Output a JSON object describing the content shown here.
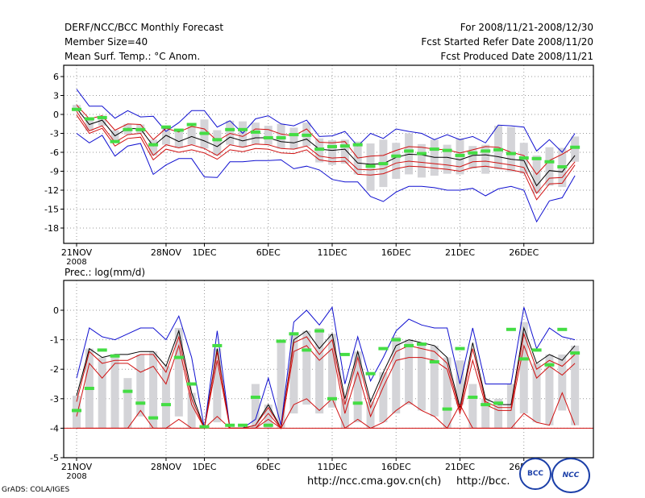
{
  "header": {
    "title": "DERF/NCC/BCC Monthly Forecast",
    "member_size": "Member Size=40",
    "variable": "Mean Surf. Temp.: °C Anom.",
    "period": "For 2008/11/21-2008/12/30",
    "started": "Fcst Started Refer Date 2008/11/20",
    "produced": "Fcst Produced Date 2008/11/21"
  },
  "footer": {
    "credit": "GrADS: COLA/IGES",
    "url1": "http://ncc.cma.gov.cn(ch)",
    "url2": "http://bcc.",
    "logo_bcc": "BCC",
    "logo_ncc": "NCC"
  },
  "x_ticks": [
    {
      "day": 0,
      "label": "21NOV",
      "sub": "2008"
    },
    {
      "day": 7,
      "label": "28NOV"
    },
    {
      "day": 10,
      "label": "1DEC"
    },
    {
      "day": 15,
      "label": "6DEC"
    },
    {
      "day": 20,
      "label": "11DEC"
    },
    {
      "day": 25,
      "label": "16DEC"
    },
    {
      "day": 30,
      "label": "21DEC"
    },
    {
      "day": 35,
      "label": "26DEC"
    }
  ],
  "colors": {
    "bar": "#d4d4d8",
    "max_min": "#1010d0",
    "pct": "#d01010",
    "mean": "#000000",
    "obs": "#44dd44"
  },
  "chart_data": [
    {
      "type": "line",
      "title": "Mean Surf. Temp.: °C Anom.",
      "ylabel": "Mean Surf. Temp. (°C Anom.)",
      "ylim": [
        -20,
        8
      ],
      "yticks": [
        6,
        3,
        0,
        -3,
        -6,
        -9,
        -12,
        -15,
        -18
      ],
      "x_days": 40,
      "series": [
        {
          "name": "max",
          "values": [
            4,
            1.3,
            1.3,
            -0.6,
            0.6,
            -0.4,
            -0.3,
            -2.7,
            -1.3,
            0.6,
            0.6,
            -2,
            -1,
            -3,
            -0.7,
            -0.2,
            -1.5,
            -1.8,
            -0.9,
            -3.5,
            -3.4,
            -2.7,
            -5,
            -3,
            -3.8,
            -2.3,
            -2.7,
            -3,
            -4,
            -3.2,
            -4,
            -3.5,
            -4.5,
            -1.7,
            -1.8,
            -2,
            -5.8,
            -4,
            -6,
            -3
          ]
        },
        {
          "name": "p75",
          "values": [
            1.5,
            -0.7,
            -0.2,
            -2.5,
            -1.5,
            -1.6,
            -4,
            -2.2,
            -2.8,
            -1.9,
            -2.3,
            -4.2,
            -3,
            -3.5,
            -2.3,
            -2.4,
            -3.1,
            -3.4,
            -2.3,
            -4.4,
            -4.5,
            -4.3,
            -6.9,
            -6.6,
            -6.5,
            -5.7,
            -5.1,
            -5.2,
            -5.5,
            -5.6,
            -6.1,
            -5.6,
            -5.1,
            -5.2,
            -6,
            -6.5,
            -9.5,
            -7.3,
            -6.3,
            -5.1
          ]
        },
        {
          "name": "mean",
          "values": [
            1,
            -1.6,
            -0.9,
            -3.4,
            -2.2,
            -2.3,
            -5,
            -3.3,
            -4.3,
            -3.5,
            -4.2,
            -5.1,
            -3.6,
            -4.2,
            -3.7,
            -3.7,
            -4.3,
            -4.5,
            -3.9,
            -5.5,
            -5.7,
            -5.5,
            -7.7,
            -7.9,
            -7.8,
            -6.8,
            -6.3,
            -6.4,
            -6.8,
            -6.8,
            -7.2,
            -6.5,
            -6.4,
            -6.7,
            -7.1,
            -7.3,
            -11.3,
            -8.9,
            -9.1,
            -6.5
          ]
        },
        {
          "name": "p25",
          "values": [
            0.5,
            -2.6,
            -1.8,
            -4.4,
            -3.2,
            -3,
            -6.5,
            -4.8,
            -5.3,
            -4.8,
            -5.4,
            -6.5,
            -4.8,
            -5.2,
            -4.7,
            -4.8,
            -5.4,
            -5.5,
            -5,
            -6.6,
            -6.9,
            -6.8,
            -8.7,
            -8.8,
            -8.6,
            -7.7,
            -7.4,
            -7.6,
            -7.8,
            -8,
            -8.3,
            -7.5,
            -7.4,
            -7.7,
            -8,
            -8.4,
            -12.5,
            -10.1,
            -10,
            -7.5
          ]
        },
        {
          "name": "p10",
          "values": [
            -0.1,
            -3,
            -2.2,
            -5,
            -3.8,
            -3.6,
            -7.2,
            -5.5,
            -6,
            -5.6,
            -6.1,
            -7.1,
            -5.6,
            -5.9,
            -5.4,
            -5.5,
            -6.1,
            -6.2,
            -5.6,
            -7.2,
            -7.5,
            -7.4,
            -9.5,
            -9.6,
            -9.4,
            -8.6,
            -8.2,
            -8.3,
            -8.5,
            -8.7,
            -9,
            -8.4,
            -8.2,
            -8.5,
            -8.8,
            -9.2,
            -13.5,
            -11,
            -10.9,
            -8
          ]
        },
        {
          "name": "min",
          "values": [
            -3,
            -4.5,
            -3.3,
            -6.6,
            -5,
            -4.6,
            -9.5,
            -8,
            -7,
            -7,
            -9.9,
            -10,
            -7.5,
            -7.5,
            -7.3,
            -7.3,
            -7.2,
            -8.6,
            -8.2,
            -8.8,
            -10.3,
            -10.7,
            -10.7,
            -13,
            -13.8,
            -12.3,
            -11.4,
            -11.4,
            -11.6,
            -12,
            -12,
            -11.7,
            -12.9,
            -11.8,
            -11.4,
            -12,
            -17,
            -13.7,
            -13.2,
            -9.7
          ]
        },
        {
          "name": "observed",
          "values": [
            0.8,
            -0.7,
            -0.5,
            -4.3,
            -2.4,
            -2.4,
            -4.8,
            -2,
            -2.5,
            -1.6,
            -3,
            -4,
            -2.4,
            -2.4,
            -2.8,
            -3.7,
            -3.7,
            -3.2,
            -3.3,
            -5.5,
            -5.1,
            -5,
            -4.8,
            -8.2,
            -7.8,
            -6.6,
            -5.8,
            -6.2,
            -5.5,
            -5.7,
            -6.5,
            -6.1,
            -5.8,
            -5.6,
            -6.2,
            -6.9,
            -7,
            -7.5,
            -8.3,
            -5.2
          ]
        },
        {
          "name": "bar_top",
          "values": [
            1.5,
            -0.7,
            -0.2,
            -2.5,
            -1.5,
            -1.6,
            -4,
            -2.2,
            -2.8,
            -1.9,
            -0.8,
            -2.5,
            -1,
            -1.1,
            -1.3,
            -1.8,
            -1.5,
            -2.1,
            -1.3,
            -3.8,
            -4.1,
            -4,
            -4.3,
            -4.6,
            -4,
            -4.5,
            -3,
            -4.7,
            -4,
            -4.8,
            -3.8,
            -5,
            -4.8,
            -1.8,
            -2,
            -4.5,
            -6.5,
            -5.2,
            -5.3,
            -3.5
          ]
        },
        {
          "name": "bar_bottom",
          "values": [
            0.5,
            -2.6,
            -1.8,
            -4.4,
            -3.2,
            -3,
            -6.5,
            -4.8,
            -5.3,
            -4.8,
            -5.4,
            -6.5,
            -4.8,
            -5.2,
            -4.7,
            -4.8,
            -5.4,
            -5.5,
            -5,
            -7.6,
            -8,
            -7.8,
            -9.5,
            -12.1,
            -11.5,
            -10.2,
            -9.5,
            -10,
            -9.7,
            -9.4,
            -9.5,
            -8.6,
            -9.4,
            -8.7,
            -9.1,
            -9.4,
            -12.5,
            -11.3,
            -11.5,
            -7.5
          ]
        }
      ]
    },
    {
      "type": "line",
      "title": "Prec.: log(mm/d)",
      "ylabel": "Prec. (log(mm/d))",
      "ylim": [
        -5,
        1
      ],
      "yticks": [
        0,
        -1,
        -2,
        -3,
        -4,
        -5
      ],
      "x_days": 40,
      "series": [
        {
          "name": "max",
          "values": [
            -2.3,
            -0.6,
            -0.9,
            -1,
            -0.8,
            -0.6,
            -0.6,
            -1,
            -0.2,
            -1.6,
            -4,
            -0.7,
            -4,
            -4,
            -3.7,
            -2.3,
            -3.9,
            -0.4,
            0,
            -0.5,
            0.1,
            -2.5,
            -0.9,
            -2.4,
            -1.6,
            -0.7,
            -0.3,
            -0.5,
            -0.6,
            -0.6,
            -2.5,
            -0.6,
            -2.5,
            -2.5,
            -2.5,
            0.1,
            -1.3,
            -0.6,
            -0.9,
            -1
          ]
        },
        {
          "name": "mean",
          "values": [
            -2.9,
            -1.3,
            -1.6,
            -1.5,
            -1.5,
            -1.4,
            -1.4,
            -1.9,
            -0.7,
            -2.8,
            -4,
            -1.3,
            -4,
            -4,
            -3.9,
            -3.2,
            -4,
            -1,
            -0.7,
            -1.3,
            -0.8,
            -3,
            -1.4,
            -3.1,
            -2.1,
            -1.2,
            -1,
            -1.1,
            -1.2,
            -1.6,
            -3.3,
            -1.1,
            -3,
            -3.2,
            -3.2,
            -0.6,
            -1.8,
            -1.5,
            -1.7,
            -1.2
          ]
        },
        {
          "name": "p75",
          "values": [
            -3.1,
            -1.4,
            -1.8,
            -1.7,
            -1.7,
            -1.5,
            -1.5,
            -2.1,
            -0.9,
            -3,
            -4,
            -1.4,
            -4,
            -4,
            -3.9,
            -3.3,
            -4,
            -1.1,
            -0.9,
            -1.5,
            -1,
            -3.2,
            -1.6,
            -3.3,
            -2.3,
            -1.4,
            -1.2,
            -1.3,
            -1.4,
            -1.8,
            -3.4,
            -1.3,
            -3.1,
            -3.3,
            -3.3,
            -0.8,
            -2,
            -1.7,
            -1.9,
            -1.5
          ]
        },
        {
          "name": "p25",
          "values": [
            -3.6,
            -1.8,
            -2.3,
            -1.8,
            -1.8,
            -2.1,
            -1.9,
            -2.5,
            -1.2,
            -3.2,
            -4,
            -1.7,
            -4,
            -4,
            -4,
            -3.5,
            -4,
            -1.4,
            -1.2,
            -1.7,
            -1.3,
            -3.5,
            -2.1,
            -3.6,
            -2.6,
            -1.7,
            -1.6,
            -1.6,
            -1.7,
            -2,
            -3.5,
            -1.7,
            -3.2,
            -3.4,
            -3.4,
            -1.2,
            -2.3,
            -1.9,
            -2.2,
            -1.8
          ]
        },
        {
          "name": "p10",
          "values": [
            -4,
            -4,
            -4,
            -4,
            -4,
            -3.4,
            -4,
            -4,
            -3.7,
            -4,
            -4,
            -3.6,
            -4,
            -4,
            -4,
            -3.7,
            -4,
            -3.2,
            -3,
            -3.4,
            -3,
            -4,
            -3.7,
            -4,
            -3.8,
            -3.4,
            -3.1,
            -3.4,
            -3.6,
            -4,
            -3.2,
            -4,
            -4,
            -4,
            -4,
            -3.5,
            -3.8,
            -3.9,
            -2.8,
            -3.9
          ]
        },
        {
          "name": "observed",
          "values": [
            -3.4,
            -2.65,
            -1.35,
            -1.55,
            -2.75,
            -3.15,
            -3.65,
            -3.2,
            -1.6,
            -2.5,
            -3.95,
            -1.2,
            -3.9,
            -3.9,
            -2.95,
            -3.9,
            -1.05,
            -0.8,
            -1.35,
            -0.7,
            -3,
            -1.5,
            -3.15,
            -2.15,
            -1.3,
            -1,
            -1.2,
            -1.15,
            -1.75,
            -3.35,
            -1.3,
            -2.95,
            -3.2,
            -3.15,
            -0.65,
            -1.65,
            -1.35,
            -1.85,
            -0.65,
            -1.45
          ]
        },
        {
          "name": "bar_top",
          "values": [
            -2.9,
            -1.3,
            -1.6,
            -1.5,
            -2.3,
            -1.5,
            -1.4,
            -1.9,
            -0.6,
            -2.8,
            -4,
            -1.3,
            -4,
            -4,
            -2.5,
            -3.2,
            -1,
            -0.8,
            -0.7,
            -0.6,
            -0.8,
            -3,
            -1.4,
            -3.1,
            -2.1,
            -0.9,
            -1,
            -1.1,
            -1.2,
            -1.6,
            -1.7,
            -2.5,
            -3,
            -3,
            -2.5,
            -0.4,
            -1.8,
            -1.5,
            -1.5,
            -1.2
          ]
        },
        {
          "name": "bar_bottom",
          "values": [
            -4,
            -4,
            -4,
            -4,
            -4,
            -3.6,
            -4,
            -4,
            -3.6,
            -4,
            -4,
            -3.8,
            -4,
            -4,
            -4,
            -4,
            -4,
            -3.5,
            -3.2,
            -3.5,
            -3.3,
            -4,
            -3.8,
            -4,
            -3.8,
            -3.5,
            -3.2,
            -3.4,
            -3.6,
            -4,
            -3.2,
            -4,
            -4,
            -4,
            -4,
            -3.5,
            -3.8,
            -3.9,
            -3.4,
            -3.9
          ]
        }
      ]
    }
  ]
}
